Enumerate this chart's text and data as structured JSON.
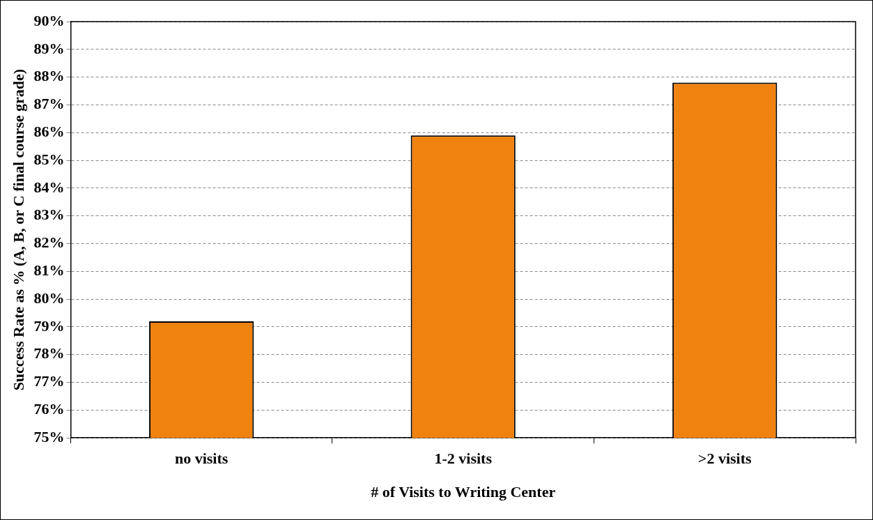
{
  "chart_data": {
    "type": "bar",
    "xlabel": "# of Visits to Writing Center",
    "ylabel": "Success Rate as % (A, B, or C final course grade)",
    "categories": [
      "no visits",
      "1-2 visits",
      ">2 visits"
    ],
    "values": [
      79.2,
      85.9,
      87.8
    ],
    "color": "#f0820f",
    "ylim": [
      75,
      90
    ],
    "yticks": [
      {
        "value": 75,
        "label": "75%"
      },
      {
        "value": 76,
        "label": "76%"
      },
      {
        "value": 77,
        "label": "77%"
      },
      {
        "value": 78,
        "label": "78%"
      },
      {
        "value": 79,
        "label": "79%"
      },
      {
        "value": 80,
        "label": "80%"
      },
      {
        "value": 81,
        "label": "81%"
      },
      {
        "value": 82,
        "label": "82%"
      },
      {
        "value": 83,
        "label": "83%"
      },
      {
        "value": 84,
        "label": "84%"
      },
      {
        "value": 85,
        "label": "85%"
      },
      {
        "value": 86,
        "label": "86%"
      },
      {
        "value": 87,
        "label": "87%"
      },
      {
        "value": 88,
        "label": "88%"
      },
      {
        "value": 89,
        "label": "89%"
      },
      {
        "value": 90,
        "label": "90%"
      }
    ],
    "grid": "y"
  }
}
